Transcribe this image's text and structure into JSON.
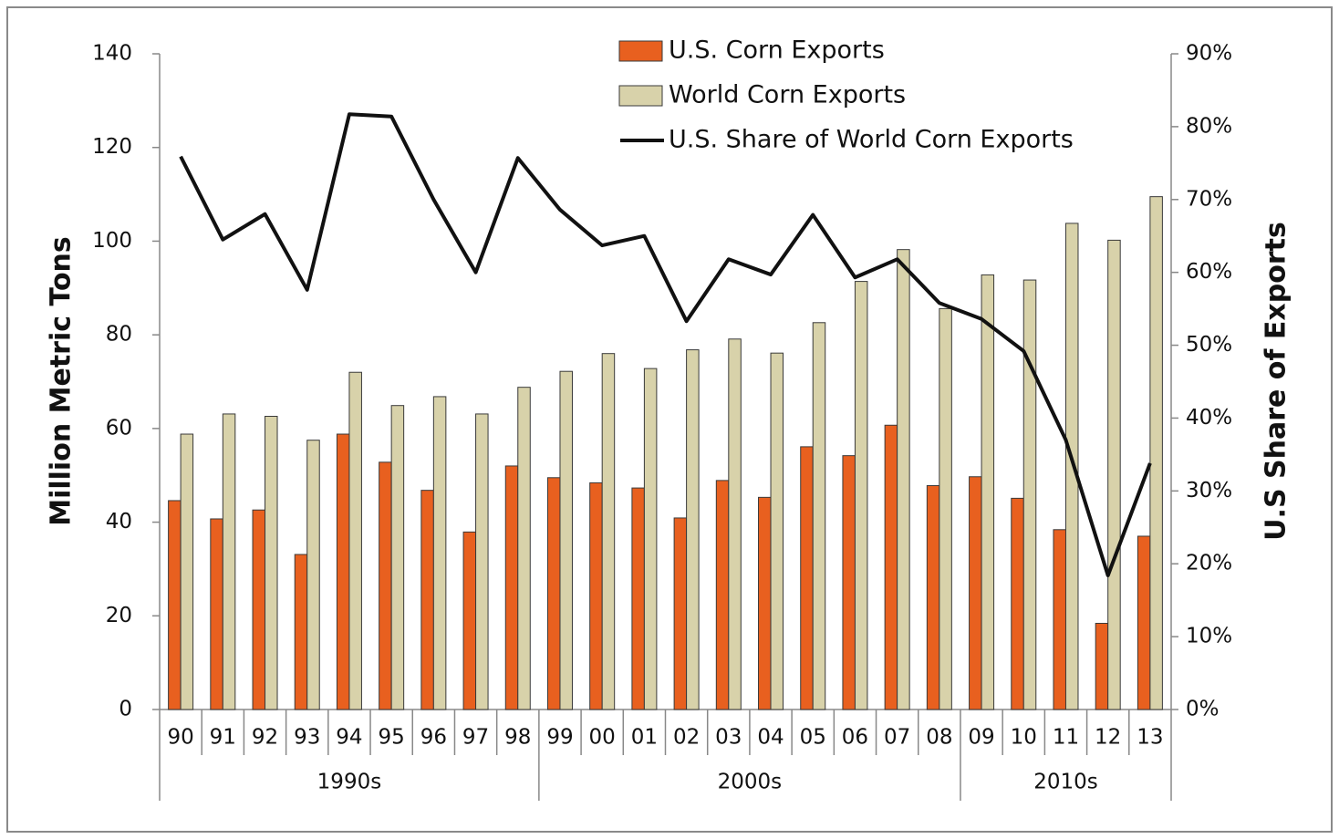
{
  "chart_data": {
    "type": "bar-line",
    "y_label": "Million Metric Tons",
    "y2_label": "U.S Share of Exports",
    "categories": [
      "90",
      "91",
      "92",
      "93",
      "94",
      "95",
      "96",
      "97",
      "98",
      "99",
      "00",
      "01",
      "02",
      "03",
      "04",
      "05",
      "06",
      "07",
      "08",
      "09",
      "10",
      "11",
      "12",
      "13"
    ],
    "category_groups": [
      "1990s",
      "1990s",
      "1990s",
      "1990s",
      "1990s",
      "1990s",
      "1990s",
      "1990s",
      "1990s",
      "2000s",
      "2000s",
      "2000s",
      "2000s",
      "2000s",
      "2000s",
      "2000s",
      "2000s",
      "2000s",
      "2000s",
      "2010s",
      "2010s",
      "2010s",
      "2010s",
      "2010s"
    ],
    "series": [
      {
        "name": "U.S. Corn Exports",
        "type": "bar",
        "color": "#e8601f",
        "values": [
          44.6,
          40.7,
          42.6,
          33.1,
          58.8,
          52.8,
          46.8,
          37.9,
          52.0,
          49.5,
          48.4,
          47.3,
          40.9,
          48.9,
          45.3,
          56.1,
          54.2,
          60.7,
          47.8,
          49.7,
          45.1,
          38.4,
          18.4,
          37.0
        ]
      },
      {
        "name": "World Corn Exports",
        "type": "bar",
        "color": "#d8d2aa",
        "values": [
          58.8,
          63.1,
          62.6,
          57.5,
          72.0,
          64.9,
          66.8,
          63.1,
          68.8,
          72.2,
          76.0,
          72.8,
          76.8,
          79.1,
          76.1,
          82.6,
          91.4,
          98.2,
          85.6,
          92.8,
          91.7,
          103.8,
          100.2,
          109.5
        ]
      },
      {
        "name": "U.S. Share of World Corn Exports",
        "type": "line",
        "axis": "y2",
        "color": "#111111",
        "values": [
          75.9,
          64.5,
          68.0,
          57.6,
          81.7,
          81.4,
          70.0,
          60.0,
          75.7,
          68.6,
          63.7,
          65.0,
          53.3,
          61.8,
          59.7,
          67.9,
          59.3,
          61.8,
          55.8,
          53.6,
          49.2,
          37.0,
          18.4,
          33.8
        ]
      }
    ],
    "ylim": [
      0,
      140
    ],
    "yticks": [
      0,
      20,
      40,
      60,
      80,
      100,
      120,
      140
    ],
    "y2lim": [
      0,
      90
    ],
    "y2ticks": [
      {
        "value": 0,
        "label": "0%"
      },
      {
        "value": 10,
        "label": "10%"
      },
      {
        "value": 20,
        "label": "20%"
      },
      {
        "value": 30,
        "label": "30%"
      },
      {
        "value": 40,
        "label": "40%"
      },
      {
        "value": 50,
        "label": "50%"
      },
      {
        "value": 60,
        "label": "60%"
      },
      {
        "value": 70,
        "label": "70%"
      },
      {
        "value": 80,
        "label": "80%"
      },
      {
        "value": 90,
        "label": "90%"
      }
    ],
    "grid": false,
    "legend": "top"
  }
}
